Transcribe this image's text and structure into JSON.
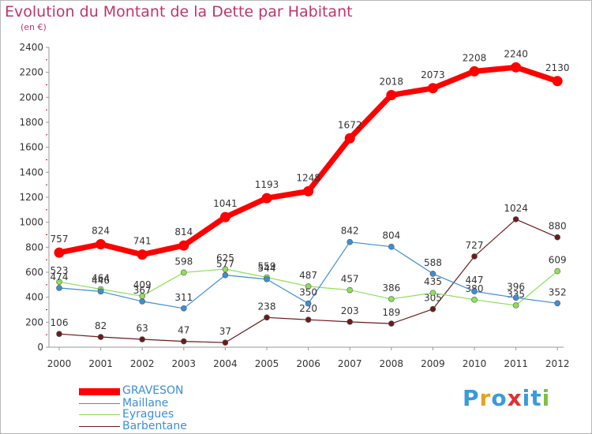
{
  "chart_data": {
    "type": "line",
    "title": "Evolution du Montant de la Dette par Habitant",
    "subtitle": "(en €)",
    "categories": [
      "2000",
      "2001",
      "2002",
      "2003",
      "2004",
      "2005",
      "2006",
      "2007",
      "2008",
      "2009",
      "2010",
      "2011",
      "2012"
    ],
    "ylim": [
      0,
      2400
    ],
    "yticks": [
      0,
      200,
      400,
      600,
      800,
      1000,
      1200,
      1400,
      1600,
      1800,
      2000,
      2200,
      2400
    ],
    "grid": false,
    "legend_position": "bottom-left",
    "series": [
      {
        "name": "GRAVESON",
        "color": "#ff0000",
        "values": [
          757,
          824,
          741,
          814,
          1041,
          1193,
          1248,
          1672,
          2018,
          2073,
          2208,
          2240,
          2130
        ]
      },
      {
        "name": "Maillane",
        "color": "#3c8ed6",
        "values": [
          474,
          446,
          367,
          311,
          577,
          544,
          350,
          842,
          804,
          588,
          447,
          396,
          352
        ]
      },
      {
        "name": "Eyragues",
        "color": "#8ee05a",
        "values": [
          523,
          464,
          409,
          598,
          625,
          559,
          487,
          457,
          386,
          435,
          380,
          335,
          609
        ]
      },
      {
        "name": "Barbentane",
        "color": "#6b1b1b",
        "values": [
          106,
          82,
          63,
          47,
          37,
          238,
          220,
          203,
          189,
          305,
          727,
          1024,
          880
        ]
      }
    ],
    "data_labels": [
      [
        "757",
        "824",
        "741",
        "814",
        "1041",
        "1193",
        "1248",
        "1672",
        "2018",
        "2073",
        "2208",
        "2240",
        "2130"
      ],
      [
        "474",
        "446",
        "367",
        "311",
        "577",
        "544",
        "350",
        "842",
        "804",
        "588",
        "447",
        "396",
        "352"
      ],
      [
        "523",
        "464",
        "409",
        "598",
        "625",
        "559",
        "487",
        "457",
        "386",
        "435",
        "380",
        "335",
        "609"
      ],
      [
        "106",
        "82",
        "63",
        "47",
        "37",
        "238",
        "220",
        "203",
        "189",
        "305",
        "727",
        "1024",
        "880"
      ]
    ]
  },
  "brand": {
    "name": "Proxiti",
    "letters": [
      "P",
      "r",
      "o",
      "x",
      "i",
      "t",
      "i"
    ],
    "colors": [
      "#3a9bd8",
      "#e8a020",
      "#3a9bd8",
      "#e03030",
      "#3a9bd8",
      "#3a9bd8",
      "#80c040"
    ]
  }
}
